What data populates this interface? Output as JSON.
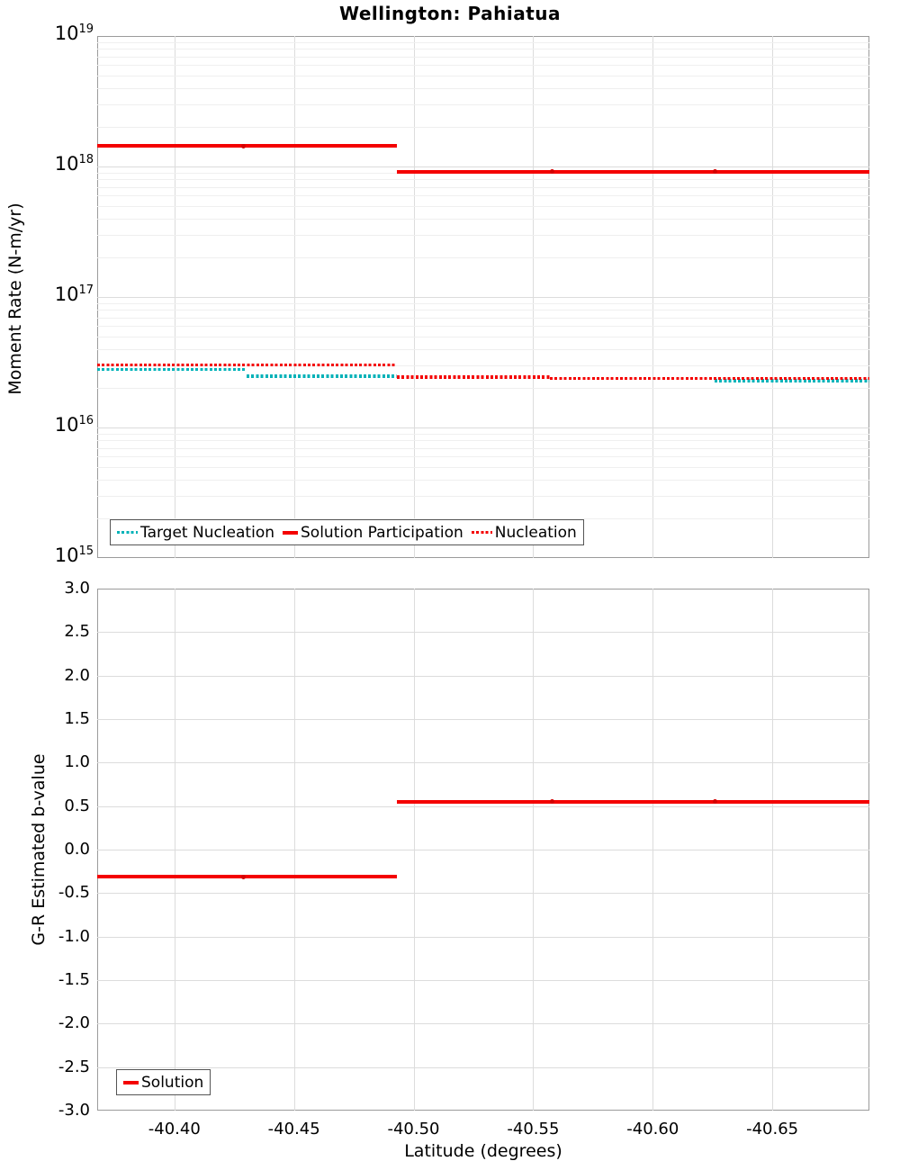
{
  "figure": {
    "title": "Wellington: Pahiatua"
  },
  "colors": {
    "red": "#f40000",
    "red_marker": "#d40000",
    "teal": "#00b2b8",
    "grid_major": "#dcdcdc",
    "grid_minor": "#efefef",
    "plot_border": "#9b9b9b",
    "legend_border": "#555555",
    "text": "#000000"
  },
  "top_plot": {
    "ylabel": "Moment Rate (N-m/yr)",
    "y_tick_exponents": [
      19,
      18,
      17,
      16,
      15
    ],
    "legend_items": [
      {
        "label": "Target Nucleation",
        "style": "dotted",
        "color_key": "teal"
      },
      {
        "label": "Solution Participation",
        "style": "solid",
        "color_key": "red"
      },
      {
        "label": "Nucleation",
        "style": "dotted",
        "color_key": "red"
      }
    ]
  },
  "bottom_plot": {
    "ylabel": "G-R Estimated b-value",
    "xlabel": "Latitude (degrees)",
    "y_tick_labels": [
      "3.0",
      "2.5",
      "2.0",
      "1.5",
      "1.0",
      "0.5",
      "0.0",
      "-0.5",
      "-1.0",
      "-1.5",
      "-2.0",
      "-2.5",
      "-3.0"
    ],
    "x_tick_labels": [
      "-40.40",
      "-40.45",
      "-40.50",
      "-40.55",
      "-40.60",
      "-40.65"
    ],
    "legend_items": [
      {
        "label": "Solution",
        "style": "solid",
        "color_key": "red"
      }
    ]
  },
  "chart_data": [
    {
      "type": "line",
      "title": "Wellington: Pahiatua",
      "xlabel": "Latitude (degrees)",
      "ylabel": "Moment Rate (N-m/yr)",
      "x_range": [
        -40.3677,
        -40.6906
      ],
      "x_ticks": [
        -40.4,
        -40.45,
        -40.5,
        -40.55,
        -40.6,
        -40.65
      ],
      "y_scale": "log",
      "ylim": [
        1000000000000000.0,
        1e+19
      ],
      "grid": true,
      "legend_position": "lower left",
      "series": [
        {
          "name": "Target Nucleation",
          "style": "dotted",
          "color_key": "teal",
          "segments": [
            [
              -40.3677,
              -40.43,
              2.8e+16
            ],
            [
              -40.43,
              -40.493,
              2.47e+16
            ],
            [
              -40.493,
              -40.557,
              2.45e+16
            ],
            [
              -40.557,
              -40.626,
              2.38e+16
            ],
            [
              -40.626,
              -40.6906,
              2.28e+16
            ]
          ]
        },
        {
          "name": "Solution Participation",
          "style": "solid",
          "color_key": "red",
          "segments": [
            [
              -40.3677,
              -40.493,
              1.44e+18
            ],
            [
              -40.493,
              -40.6906,
              9.1e+17
            ]
          ],
          "markers": [
            [
              -40.429,
              1.44e+18
            ],
            [
              -40.558,
              9.1e+17
            ],
            [
              -40.626,
              9.1e+17
            ]
          ]
        },
        {
          "name": "Nucleation",
          "style": "dotted",
          "color_key": "red",
          "segments": [
            [
              -40.3677,
              -40.493,
              3e+16
            ],
            [
              -40.493,
              -40.557,
              2.43e+16
            ],
            [
              -40.557,
              -40.6906,
              2.38e+16
            ]
          ]
        }
      ]
    },
    {
      "type": "line",
      "xlabel": "Latitude (degrees)",
      "ylabel": "G-R Estimated b-value",
      "x_range": [
        -40.3677,
        -40.6906
      ],
      "x_ticks": [
        -40.4,
        -40.45,
        -40.5,
        -40.55,
        -40.6,
        -40.65
      ],
      "y_scale": "linear",
      "ylim": [
        -3.0,
        3.0
      ],
      "y_tick_step": 0.5,
      "grid": true,
      "legend_position": "lower left",
      "series": [
        {
          "name": "Solution",
          "style": "solid",
          "color_key": "red",
          "segments": [
            [
              -40.3677,
              -40.493,
              -0.31
            ],
            [
              -40.493,
              -40.6906,
              0.55
            ]
          ],
          "markers": [
            [
              -40.429,
              -0.31
            ],
            [
              -40.558,
              0.55
            ],
            [
              -40.626,
              0.55
            ]
          ]
        }
      ]
    }
  ]
}
